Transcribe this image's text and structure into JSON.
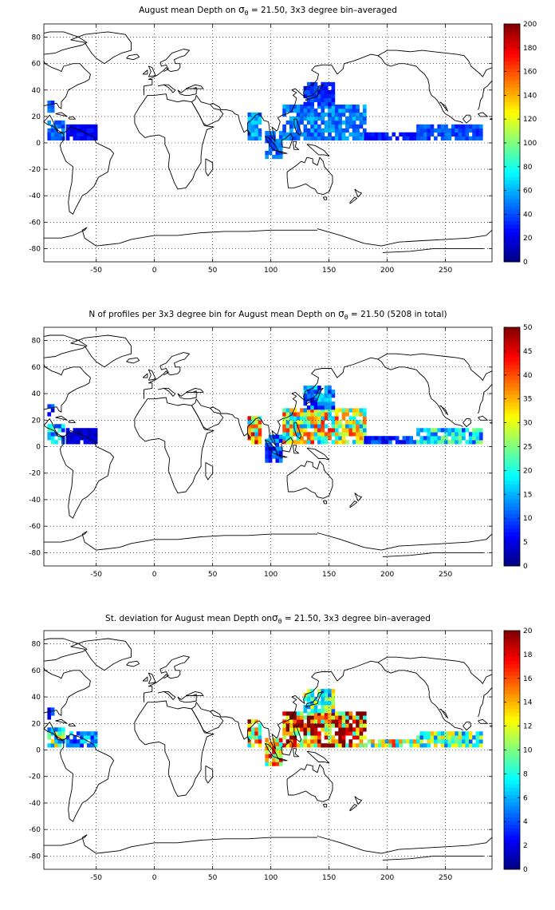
{
  "chart_data": [
    {
      "type": "heatmap",
      "title_parts": [
        "August mean Depth on ",
        "σ",
        "θ",
        " = 21.50, 3x3 degree bin–averaged"
      ],
      "xlabel": "",
      "ylabel": "",
      "xlim": [
        -95,
        290
      ],
      "ylim": [
        -90,
        90
      ],
      "xticks": [
        -50,
        0,
        50,
        100,
        150,
        200,
        250
      ],
      "yticks": [
        -80,
        -60,
        -40,
        -20,
        0,
        20,
        40,
        60,
        80
      ],
      "grid": true,
      "colorbar": {
        "min": 0,
        "max": 200,
        "ticks": [
          0,
          20,
          40,
          60,
          80,
          100,
          120,
          140,
          160,
          180,
          200
        ]
      },
      "bin_size_deg": 3,
      "regions": [
        {
          "lon": [
            -92,
            -77
          ],
          "lat": [
            2,
            17
          ],
          "value": 45
        },
        {
          "lon": [
            -92,
            -86
          ],
          "lat": [
            23,
            32
          ],
          "value": 40
        },
        {
          "lon": [
            -76,
            -50
          ],
          "lat": [
            2,
            14
          ],
          "value": 25
        },
        {
          "lon": [
            80,
            92
          ],
          "lat": [
            2,
            22
          ],
          "value": 55
        },
        {
          "lon": [
            95,
            110
          ],
          "lat": [
            -12,
            8
          ],
          "value": 45
        },
        {
          "lon": [
            110,
            180
          ],
          "lat": [
            2,
            28
          ],
          "value": 50
        },
        {
          "lon": [
            128,
            155
          ],
          "lat": [
            28,
            44
          ],
          "value": 35
        },
        {
          "lon": [
            180,
            225
          ],
          "lat": [
            2,
            8
          ],
          "value": 30
        },
        {
          "lon": [
            225,
            280
          ],
          "lat": [
            2,
            14
          ],
          "value": 40
        }
      ]
    },
    {
      "type": "heatmap",
      "title_parts": [
        "N of profiles per 3x3 degree bin for August mean Depth on ",
        "σ",
        "θ",
        " = 21.50 (5208 in total)"
      ],
      "xlabel": "",
      "ylabel": "",
      "xlim": [
        -95,
        290
      ],
      "ylim": [
        -90,
        90
      ],
      "xticks": [
        -50,
        0,
        50,
        100,
        150,
        200,
        250
      ],
      "yticks": [
        -80,
        -60,
        -40,
        -20,
        0,
        20,
        40,
        60,
        80
      ],
      "grid": true,
      "colorbar": {
        "min": 0,
        "max": 50,
        "ticks": [
          0,
          5,
          10,
          15,
          20,
          25,
          30,
          35,
          40,
          45,
          50
        ]
      },
      "bin_size_deg": 3,
      "total_profiles": 5208,
      "regions": [
        {
          "lon": [
            -92,
            -77
          ],
          "lat": [
            2,
            17
          ],
          "value": 15
        },
        {
          "lon": [
            -92,
            -86
          ],
          "lat": [
            23,
            32
          ],
          "value": 8
        },
        {
          "lon": [
            -76,
            -50
          ],
          "lat": [
            2,
            14
          ],
          "value": 4
        },
        {
          "lon": [
            80,
            92
          ],
          "lat": [
            2,
            22
          ],
          "value": 30
        },
        {
          "lon": [
            95,
            110
          ],
          "lat": [
            -12,
            8
          ],
          "value": 10
        },
        {
          "lon": [
            110,
            180
          ],
          "lat": [
            2,
            28
          ],
          "value": 28
        },
        {
          "lon": [
            128,
            155
          ],
          "lat": [
            28,
            44
          ],
          "value": 12
        },
        {
          "lon": [
            180,
            225
          ],
          "lat": [
            2,
            8
          ],
          "value": 8
        },
        {
          "lon": [
            225,
            280
          ],
          "lat": [
            2,
            14
          ],
          "value": 18
        }
      ]
    },
    {
      "type": "heatmap",
      "title_parts": [
        "St. deviation for August mean Depth on",
        "σ",
        "θ",
        " = 21.50, 3x3 degree bin–averaged"
      ],
      "xlabel": "",
      "ylabel": "",
      "xlim": [
        -95,
        290
      ],
      "ylim": [
        -90,
        90
      ],
      "xticks": [
        -50,
        0,
        50,
        100,
        150,
        200,
        250
      ],
      "yticks": [
        -80,
        -60,
        -40,
        -20,
        0,
        20,
        40,
        60,
        80
      ],
      "grid": true,
      "colorbar": {
        "min": 0,
        "max": 20,
        "ticks": [
          0,
          2,
          4,
          6,
          8,
          10,
          12,
          14,
          16,
          18,
          20
        ]
      },
      "bin_size_deg": 3,
      "regions": [
        {
          "lon": [
            -92,
            -77
          ],
          "lat": [
            2,
            17
          ],
          "value": 9
        },
        {
          "lon": [
            -92,
            -86
          ],
          "lat": [
            23,
            32
          ],
          "value": 3
        },
        {
          "lon": [
            -76,
            -50
          ],
          "lat": [
            2,
            14
          ],
          "value": 5
        },
        {
          "lon": [
            80,
            92
          ],
          "lat": [
            2,
            22
          ],
          "value": 13
        },
        {
          "lon": [
            95,
            110
          ],
          "lat": [
            -12,
            8
          ],
          "value": 12
        },
        {
          "lon": [
            110,
            180
          ],
          "lat": [
            2,
            28
          ],
          "value": 16
        },
        {
          "lon": [
            128,
            155
          ],
          "lat": [
            28,
            44
          ],
          "value": 9
        },
        {
          "lon": [
            180,
            225
          ],
          "lat": [
            2,
            8
          ],
          "value": 11
        },
        {
          "lon": [
            225,
            280
          ],
          "lat": [
            2,
            14
          ],
          "value": 9
        }
      ]
    }
  ]
}
